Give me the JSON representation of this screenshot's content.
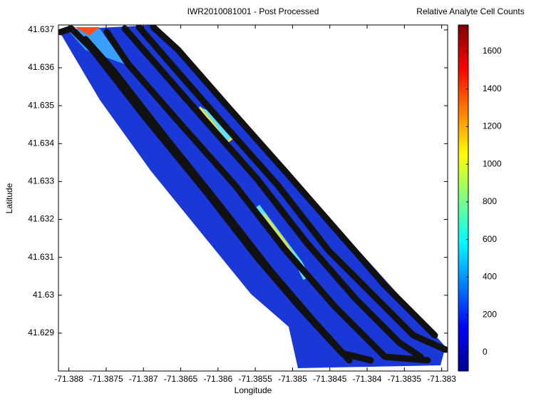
{
  "chart_data": {
    "type": "map",
    "title": "IWR2010081001 - Post Processed",
    "x_label": "Longitude",
    "y_label": "Latitude",
    "xlim": [
      -71.38814,
      -71.38292
    ],
    "xticks": [
      -71.388,
      -71.3875,
      -71.387,
      -71.3865,
      -71.386,
      -71.3855,
      -71.385,
      -71.3845,
      -71.384,
      -71.3835,
      -71.383
    ],
    "ylim": [
      41.628,
      41.63713
    ],
    "yticks": [
      41.629,
      41.63,
      41.631,
      41.632,
      41.633,
      41.634,
      41.635,
      41.636,
      41.637
    ],
    "colorbar": {
      "title": "Relative Analyte Cell Counts",
      "lim": [
        -99,
        1740
      ],
      "ticks": [
        0,
        200,
        400,
        600,
        800,
        1000,
        1200,
        1400,
        1600
      ]
    }
  }
}
